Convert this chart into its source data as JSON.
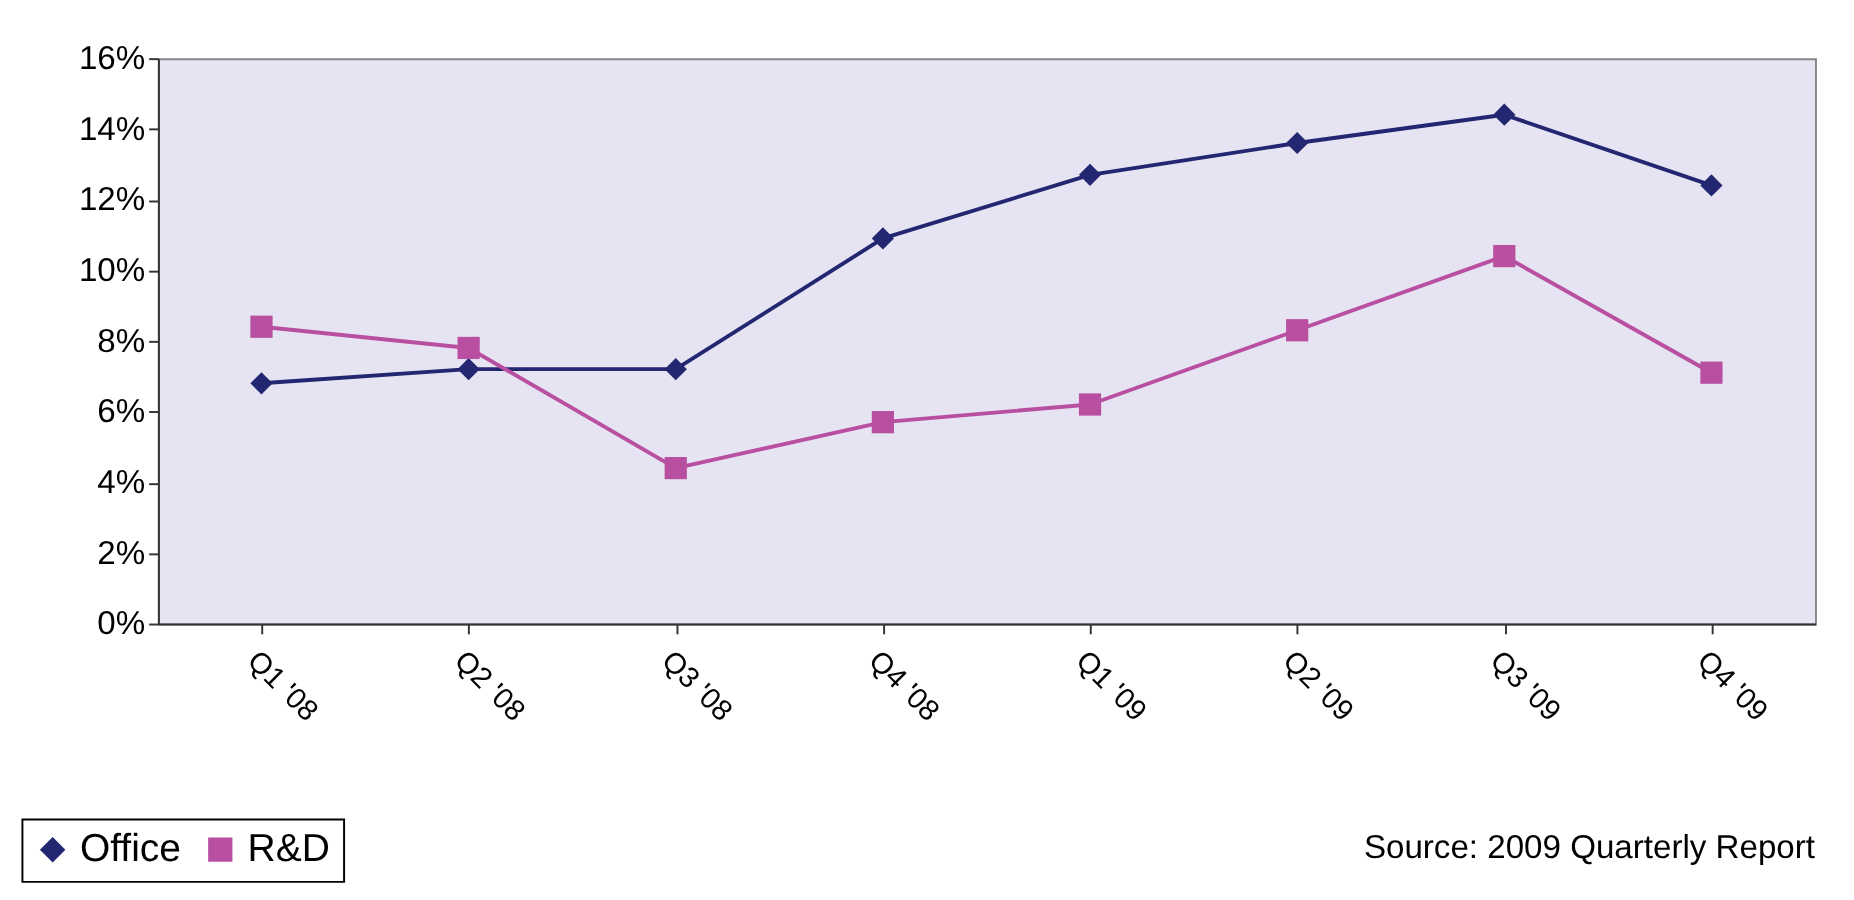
{
  "chart_data": {
    "type": "line",
    "categories": [
      "Q1 '08",
      "Q2 '08",
      "Q3 '08",
      "Q4 '08",
      "Q1 '09",
      "Q2 '09",
      "Q3 '09",
      "Q4 '09"
    ],
    "series": [
      {
        "name": "Office",
        "color": "#232671",
        "marker": "diamond",
        "values": [
          6.8,
          7.2,
          7.2,
          10.9,
          12.7,
          13.6,
          14.4,
          12.4
        ]
      },
      {
        "name": "R&D",
        "color": "#b84fa0",
        "marker": "square",
        "values": [
          8.4,
          7.8,
          4.4,
          5.7,
          6.2,
          8.3,
          10.4,
          7.1
        ]
      }
    ],
    "ylim": [
      0,
      16
    ],
    "yticks": [
      {
        "value": 0,
        "label": "0%"
      },
      {
        "value": 2,
        "label": "2%"
      },
      {
        "value": 4,
        "label": "4%"
      },
      {
        "value": 6,
        "label": "6%"
      },
      {
        "value": 8,
        "label": "8%"
      },
      {
        "value": 10,
        "label": "10%"
      },
      {
        "value": 12,
        "label": "12%"
      },
      {
        "value": 14,
        "label": "14%"
      },
      {
        "value": 16,
        "label": "16%"
      }
    ],
    "grid": false,
    "legend": "bottom left",
    "line_style": "solid",
    "annotations": [
      "Source: 2009 Quarterly Report"
    ]
  }
}
